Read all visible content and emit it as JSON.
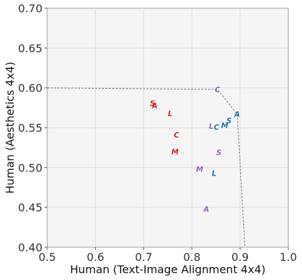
{
  "chart_data": {
    "type": "scatter",
    "title": "",
    "xlabel": "Human (Text-Image Alignment 4x4)",
    "ylabel": "Human (Aesthetics 4x4)",
    "xlim": [
      0.5,
      1.0
    ],
    "ylim": [
      0.4,
      0.7
    ],
    "xticks": [
      "0.5",
      "0.6",
      "0.7",
      "0.8",
      "0.9",
      "1.0"
    ],
    "yticks": [
      "0.40",
      "0.45",
      "0.50",
      "0.55",
      "0.60",
      "0.65",
      "0.70"
    ],
    "grid": true,
    "colors": {
      "red": "#d62728",
      "blue": "#1f77b4",
      "purple": "#9467bd",
      "frontier": "#777777",
      "plot_bg": "#f5f5f5",
      "grid": "#dddddd"
    },
    "points": [
      {
        "label": "S",
        "x": 0.718,
        "y": 0.581,
        "color": "red"
      },
      {
        "label": "A",
        "x": 0.723,
        "y": 0.578,
        "color": "red"
      },
      {
        "label": "L",
        "x": 0.755,
        "y": 0.568,
        "color": "red"
      },
      {
        "label": "C",
        "x": 0.768,
        "y": 0.541,
        "color": "red"
      },
      {
        "label": "M",
        "x": 0.765,
        "y": 0.52,
        "color": "red"
      },
      {
        "label": "C",
        "x": 0.853,
        "y": 0.598,
        "color": "purple"
      },
      {
        "label": "L",
        "x": 0.84,
        "y": 0.552,
        "color": "purple"
      },
      {
        "label": "S",
        "x": 0.856,
        "y": 0.519,
        "color": "purple"
      },
      {
        "label": "M",
        "x": 0.816,
        "y": 0.498,
        "color": "purple"
      },
      {
        "label": "A",
        "x": 0.83,
        "y": 0.448,
        "color": "purple"
      },
      {
        "label": "A",
        "x": 0.894,
        "y": 0.567,
        "color": "blue"
      },
      {
        "label": "S",
        "x": 0.877,
        "y": 0.559,
        "color": "blue"
      },
      {
        "label": "M",
        "x": 0.868,
        "y": 0.553,
        "color": "blue"
      },
      {
        "label": "C",
        "x": 0.851,
        "y": 0.551,
        "color": "blue"
      },
      {
        "label": "L",
        "x": 0.846,
        "y": 0.493,
        "color": "blue"
      }
    ],
    "frontier": [
      {
        "x": 0.5,
        "y": 0.6
      },
      {
        "x": 0.853,
        "y": 0.598
      },
      {
        "x": 0.894,
        "y": 0.567
      },
      {
        "x": 0.91,
        "y": 0.4
      }
    ]
  }
}
